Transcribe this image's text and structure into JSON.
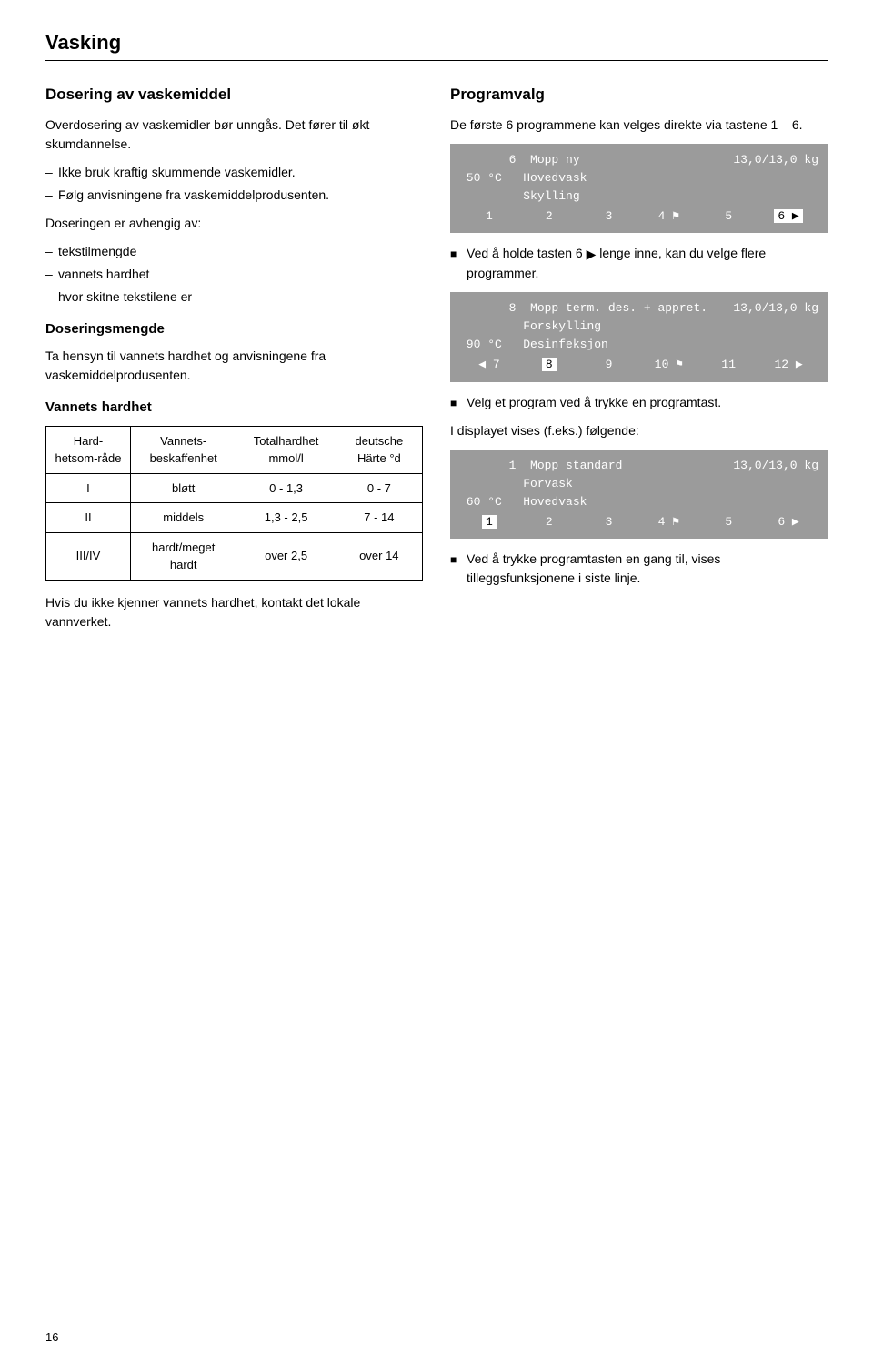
{
  "page_title": "Vasking",
  "page_number": "16",
  "left": {
    "h2": "Dosering av vaskemiddel",
    "p1": "Overdosering av vaskemidler bør unngås. Det fører til økt skumdannelse.",
    "bullets1": [
      "Ikke bruk kraftig skummende vaskemidler.",
      "Følg anvisningene fra vaskemiddelprodusenten."
    ],
    "p2": "Doseringen er avhengig av:",
    "bullets2": [
      "tekstilmengde",
      "vannets hardhet",
      "hvor skitne tekstilene er"
    ],
    "h3a": "Doseringsmengde",
    "p3": "Ta hensyn til vannets hardhet og anvisningene fra vaskemiddelprodusenten.",
    "h3b": "Vannets hardhet",
    "table": {
      "columns": [
        "Hard-hetsom-råde",
        "Vannets-beskaffenhet",
        "Totalhardhet mmol/l",
        "deutsche Härte °d"
      ],
      "rows": [
        [
          "I",
          "bløtt",
          "0 - 1,3",
          "0 - 7"
        ],
        [
          "II",
          "middels",
          "1,3 - 2,5",
          "7 - 14"
        ],
        [
          "III/IV",
          "hardt/meget hardt",
          "over 2,5",
          "over 14"
        ]
      ]
    },
    "p4": "Hvis du ikke kjenner vannets hardhet, kontakt det lokale vannverket."
  },
  "right": {
    "h2": "Programvalg",
    "p1": "De første 6 programmene kan velges direkte via tastene 1 – 6.",
    "display1": {
      "left_top": "       6",
      "mid_top": "Mopp ny",
      "right_top": "13,0/13,0 kg",
      "line2_left": " 50 °C",
      "line2_mid": "Hovedvask",
      "line3_mid": "Skylling",
      "nav": [
        "1",
        "2",
        "3",
        "4 ⚑",
        "5",
        "6 ▶"
      ],
      "highlight_index": 5
    },
    "sq1_pre": "Ved å holde tasten 6 ",
    "sq1_post": " lenge inne, kan du velge flere programmer.",
    "display2": {
      "left_top": "       8",
      "mid_top": "Mopp term. des. + appret.",
      "right_top": "13,0/13,0 kg",
      "line2_mid": "Forskylling",
      "line3_left": " 90 °C",
      "line3_mid": "Desinfeksjon",
      "nav": [
        "◀ 7",
        "8",
        "9",
        "10 ⚑",
        "11",
        "12 ▶"
      ],
      "highlight_index": 1
    },
    "sq2": "Velg et program ved å trykke en programtast.",
    "p2": "I displayet vises (f.eks.) følgende:",
    "display3": {
      "left_top": "       1",
      "mid_top": "Mopp standard",
      "right_top": "13,0/13,0 kg",
      "line2_mid": "Forvask",
      "line3_left": " 60 °C",
      "line3_mid": "Hovedvask",
      "nav": [
        "1",
        "2",
        "3",
        "4 ⚑",
        "5",
        "6 ▶"
      ],
      "highlight_index": 0
    },
    "sq3": "Ved å trykke programtasten en gang til, vises tilleggsfunksjonene i siste linje."
  }
}
